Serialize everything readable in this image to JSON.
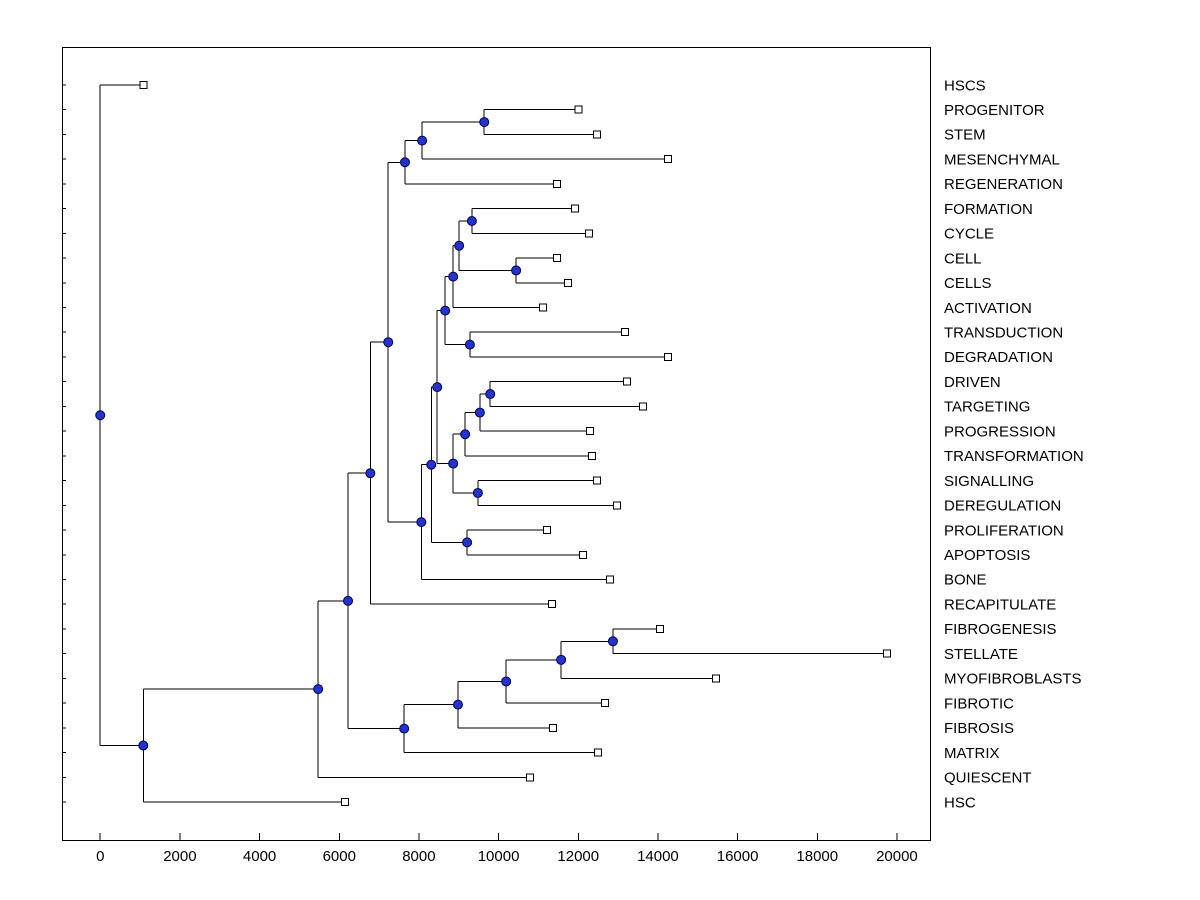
{
  "style": {
    "background": "#ffffff",
    "plot_bg": "#ffffff",
    "axis_color": "#000000",
    "line_color": "#000000",
    "node_fill": "#2433cc",
    "node_stroke": "#000055",
    "leaf_marker_fill": "#ffffff",
    "leaf_marker_stroke": "#000000",
    "text_color": "#000000"
  },
  "chart_data": {
    "type": "dendrogram",
    "orientation": "horizontal-root-left",
    "title": "",
    "xlabel": "",
    "ylabel": "",
    "xlim": [
      -960,
      20830
    ],
    "x_ticks": [
      0,
      2000,
      4000,
      6000,
      8000,
      10000,
      12000,
      14000,
      16000,
      18000,
      20000
    ],
    "grid": false,
    "legend": false,
    "marker_internal": "filled-blue-circle",
    "marker_leaf": "open-white-square",
    "leaf_labels": [
      "HSCS",
      "PROGENITOR",
      "STEM",
      "MESENCHYMAL",
      "REGENERATION",
      "FORMATION",
      "CYCLE",
      "CELL",
      "CELLS",
      "ACTIVATION",
      "TRANSDUCTION",
      "DEGRADATION",
      "DRIVEN",
      "TARGETING",
      "PROGRESSION",
      "TRANSFORMATION",
      "SIGNALLING",
      "DEREGULATION",
      "PROLIFERATION",
      "APOPTOSIS",
      "BONE",
      "RECAPITULATE",
      "FIBROGENESIS",
      "STELLATE",
      "MYOFIBROBLASTS",
      "FIBROTIC",
      "FIBROSIS",
      "MATRIX",
      "QUIESCENT",
      "HSC"
    ],
    "tree": {
      "dist": 0,
      "children": [
        {
          "leaf": "HSCS",
          "dist": 1080
        },
        {
          "dist": 1080,
          "children": [
            {
              "dist": 5470,
              "children": [
                {
                  "dist": 6220,
                  "children": [
                    {
                      "dist": 6780,
                      "children": [
                        {
                          "dist": 7230,
                          "children": [
                            {
                              "dist": 7650,
                              "children": [
                                {
                                  "dist": 8080,
                                  "children": [
                                    {
                                      "dist": 9640,
                                      "children": [
                                        {
                                          "leaf": "PROGENITOR",
                                          "dist": 12000
                                        },
                                        {
                                          "leaf": "STEM",
                                          "dist": 12470
                                        }
                                      ]
                                    },
                                    {
                                      "leaf": "MESENCHYMAL",
                                      "dist": 14250
                                    }
                                  ]
                                },
                                {
                                  "leaf": "REGENERATION",
                                  "dist": 11470
                                }
                              ]
                            },
                            {
                              "dist": 8060,
                              "children": [
                                {
                                  "dist": 8310,
                                  "children": [
                                    {
                                      "dist": 8460,
                                      "children": [
                                        {
                                          "dist": 8660,
                                          "children": [
                                            {
                                              "dist": 8860,
                                              "children": [
                                                {
                                                  "dist": 9010,
                                                  "children": [
                                                    {
                                                      "dist": 9330,
                                                      "children": [
                                                        {
                                                          "leaf": "FORMATION",
                                                          "dist": 11920
                                                        },
                                                        {
                                                          "leaf": "CYCLE",
                                                          "dist": 12270
                                                        }
                                                      ]
                                                    },
                                                    {
                                                      "dist": 10440,
                                                      "children": [
                                                        {
                                                          "leaf": "CELL",
                                                          "dist": 11470
                                                        },
                                                        {
                                                          "leaf": "CELLS",
                                                          "dist": 11740
                                                        }
                                                      ]
                                                    }
                                                  ]
                                                },
                                                {
                                                  "leaf": "ACTIVATION",
                                                  "dist": 11120
                                                }
                                              ]
                                            },
                                            {
                                              "dist": 9280,
                                              "children": [
                                                {
                                                  "leaf": "TRANSDUCTION",
                                                  "dist": 13170
                                                },
                                                {
                                                  "leaf": "DEGRADATION",
                                                  "dist": 14250
                                                }
                                              ]
                                            }
                                          ]
                                        },
                                        {
                                          "dist": 8860,
                                          "children": [
                                            {
                                              "dist": 9160,
                                              "children": [
                                                {
                                                  "dist": 9530,
                                                  "children": [
                                                    {
                                                      "dist": 9790,
                                                      "children": [
                                                        {
                                                          "leaf": "DRIVEN",
                                                          "dist": 13220
                                                        },
                                                        {
                                                          "leaf": "TARGETING",
                                                          "dist": 13630
                                                        }
                                                      ]
                                                    },
                                                    {
                                                      "leaf": "PROGRESSION",
                                                      "dist": 12300
                                                    }
                                                  ]
                                                },
                                                {
                                                  "leaf": "TRANSFORMATION",
                                                  "dist": 12350
                                                }
                                              ]
                                            },
                                            {
                                              "dist": 9480,
                                              "children": [
                                                {
                                                  "leaf": "SIGNALLING",
                                                  "dist": 12470
                                                },
                                                {
                                                  "leaf": "DEREGULATION",
                                                  "dist": 12970
                                                }
                                              ]
                                            }
                                          ]
                                        }
                                      ]
                                    },
                                    {
                                      "dist": 9210,
                                      "children": [
                                        {
                                          "leaf": "PROLIFERATION",
                                          "dist": 11220
                                        },
                                        {
                                          "leaf": "APOPTOSIS",
                                          "dist": 12120
                                        }
                                      ]
                                    }
                                  ]
                                },
                                {
                                  "leaf": "BONE",
                                  "dist": 12800
                                }
                              ]
                            }
                          ]
                        },
                        {
                          "leaf": "RECAPITULATE",
                          "dist": 11340
                        }
                      ]
                    },
                    {
                      "dist": 7630,
                      "children": [
                        {
                          "dist": 8980,
                          "children": [
                            {
                              "dist": 10190,
                              "children": [
                                {
                                  "dist": 11570,
                                  "children": [
                                    {
                                      "dist": 12870,
                                      "children": [
                                        {
                                          "leaf": "FIBROGENESIS",
                                          "dist": 14050
                                        },
                                        {
                                          "leaf": "STELLATE",
                                          "dist": 19750
                                        }
                                      ]
                                    },
                                    {
                                      "leaf": "MYOFIBROBLASTS",
                                      "dist": 15460
                                    }
                                  ]
                                },
                                {
                                  "leaf": "FIBROTIC",
                                  "dist": 12670
                                }
                              ]
                            },
                            {
                              "leaf": "FIBROSIS",
                              "dist": 11370
                            }
                          ]
                        },
                        {
                          "leaf": "MATRIX",
                          "dist": 12500
                        }
                      ]
                    }
                  ]
                },
                {
                  "leaf": "QUIESCENT",
                  "dist": 10790
                }
              ]
            },
            {
              "leaf": "HSC",
              "dist": 6150
            }
          ]
        }
      ]
    }
  }
}
